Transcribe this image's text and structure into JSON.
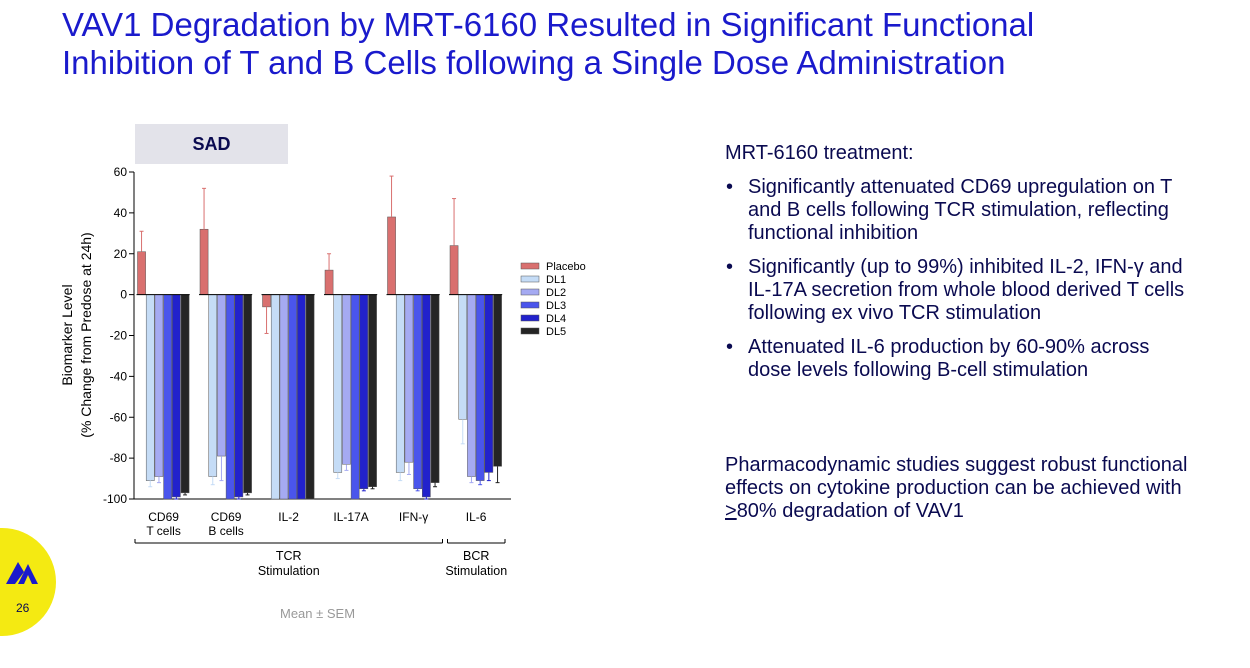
{
  "title": {
    "line1": "VAV1 Degradation by MRT-6160 Resulted in Significant Functional",
    "line2": "Inhibition of T and B Cells following a Single Dose Administration"
  },
  "panel_label": "SAD",
  "chart_data": {
    "type": "bar",
    "categories": [
      {
        "line1": "CD69",
        "line2": "T cells"
      },
      {
        "line1": "CD69",
        "line2": "B cells"
      },
      {
        "line1": "IL-2",
        "line2": ""
      },
      {
        "line1": "IL-17A",
        "line2": ""
      },
      {
        "line1": "IFN-γ",
        "line2": ""
      },
      {
        "line1": "IL-6",
        "line2": ""
      }
    ],
    "series": [
      {
        "name": "Placebo",
        "color": "#d9706f",
        "values": [
          21,
          32,
          -6,
          12,
          38,
          24
        ],
        "errors": [
          10,
          20,
          13,
          8,
          20,
          23
        ]
      },
      {
        "name": "DL1",
        "color": "#c5dcf6",
        "values": [
          -91,
          -89,
          -100,
          -87,
          -87,
          -61
        ],
        "errors": [
          3,
          4,
          0,
          3,
          4,
          12
        ]
      },
      {
        "name": "DL2",
        "color": "#a5aaf2",
        "values": [
          -89,
          -79,
          -100,
          -83,
          -82,
          -89
        ],
        "errors": [
          3,
          12,
          0,
          3,
          6,
          3
        ]
      },
      {
        "name": "DL3",
        "color": "#4a55ec",
        "values": [
          -100,
          -100,
          -100,
          -100,
          -95,
          -91
        ],
        "errors": [
          0,
          0,
          0,
          0,
          1,
          2
        ]
      },
      {
        "name": "DL4",
        "color": "#2222cc",
        "values": [
          -99,
          -99,
          -100,
          -95,
          -99,
          -87
        ],
        "errors": [
          1,
          1,
          0,
          1,
          1,
          4
        ]
      },
      {
        "name": "DL5",
        "color": "#252525",
        "values": [
          -97,
          -97,
          -100,
          -94,
          -92,
          -84
        ],
        "errors": [
          1,
          1,
          0,
          1,
          2,
          8
        ]
      }
    ],
    "ylabel_line1": "Biomarker Level",
    "ylabel_line2": "(% Change from Predose at 24h)",
    "ylim": [
      -100,
      60
    ],
    "yticks": [
      60,
      40,
      20,
      0,
      -20,
      -40,
      -60,
      -80,
      -100
    ],
    "groups": [
      {
        "line1": "TCR",
        "line2": "Stimulation",
        "from": 0,
        "to": 4
      },
      {
        "line1": "BCR",
        "line2": "Stimulation",
        "from": 5,
        "to": 5
      }
    ],
    "legend_position": "right",
    "grid": false
  },
  "right_panel": {
    "intro": "MRT-6160 treatment:",
    "bullets": [
      "Significantly attenuated CD69 upregulation on T and B cells following TCR stimulation, reflecting functional inhibition",
      "Significantly (up to 99%) inhibited IL-2, IFN-γ and IL-17A secretion from whole blood derived T cells following ex vivo TCR stimulation",
      "Attenuated IL-6 production by 60-90% across dose levels following B-cell stimulation"
    ],
    "conclusion_pre": "Pharmacodynamic studies suggest robust functional effects on cytokine production can be achieved with ",
    "conclusion_ge": ">",
    "conclusion_post": "80% degradation of VAV1"
  },
  "footnote": "Mean ± SEM",
  "page_number": "26",
  "colors": {
    "title": "#1a1acc",
    "body_text": "#0a0a50",
    "logo_bg": "#f4ea12",
    "logo_mark": "#1a1acc"
  }
}
